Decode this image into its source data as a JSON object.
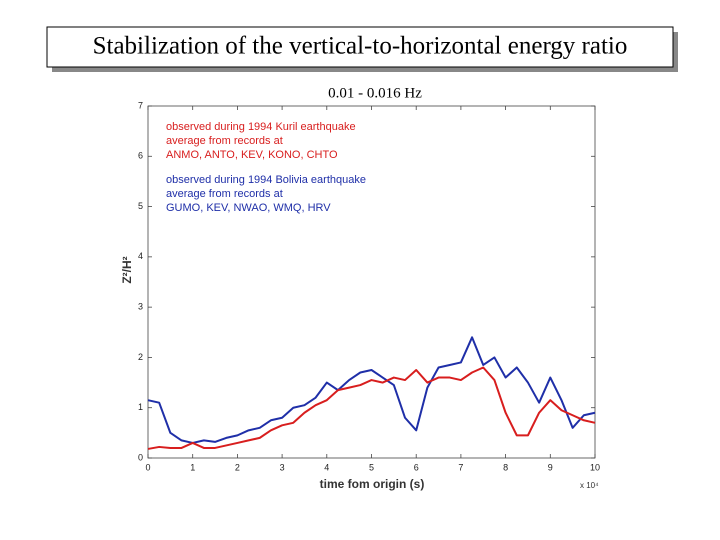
{
  "chart_data": {
    "type": "line",
    "title": "Stabilization of the vertical-to-horizontal energy ratio",
    "subtitle": "0.01 - 0.016 Hz",
    "x_label": "time fom origin (s)",
    "y_label": "Z²/H²",
    "x_multiplier": "x 10⁴",
    "x": [
      0,
      0.25,
      0.5,
      0.75,
      1,
      1.25,
      1.5,
      1.75,
      2,
      2.25,
      2.5,
      2.75,
      3,
      3.25,
      3.5,
      3.75,
      4,
      4.25,
      4.5,
      4.75,
      5,
      5.25,
      5.5,
      5.75,
      6,
      6.25,
      6.5,
      6.75,
      7,
      7.25,
      7.5,
      7.75,
      8,
      8.25,
      8.5,
      8.75,
      9,
      9.25,
      9.5,
      9.75,
      10
    ],
    "series": [
      {
        "color": "#1f2fa8",
        "values": [
          1.15,
          1.1,
          0.5,
          0.35,
          0.3,
          0.35,
          0.32,
          0.4,
          0.45,
          0.55,
          0.6,
          0.75,
          0.8,
          1.0,
          1.05,
          1.2,
          1.5,
          1.35,
          1.55,
          1.7,
          1.75,
          1.6,
          1.45,
          0.8,
          0.55,
          1.4,
          1.8,
          1.85,
          1.9,
          2.4,
          1.85,
          2.0,
          1.6,
          1.8,
          1.5,
          1.1,
          1.6,
          1.15,
          0.6,
          0.85,
          0.9
        ]
      },
      {
        "color": "#d81e1e",
        "values": [
          0.18,
          0.22,
          0.2,
          0.2,
          0.3,
          0.2,
          0.2,
          0.25,
          0.3,
          0.35,
          0.4,
          0.55,
          0.65,
          0.7,
          0.9,
          1.05,
          1.15,
          1.35,
          1.4,
          1.45,
          1.55,
          1.5,
          1.6,
          1.55,
          1.75,
          1.5,
          1.6,
          1.6,
          1.55,
          1.7,
          1.8,
          1.55,
          0.9,
          0.45,
          0.45,
          0.9,
          1.15,
          0.95,
          0.85,
          0.75,
          0.7
        ]
      }
    ],
    "annotations": [
      {
        "color": "#d81e1e",
        "lines": [
          "observed during 1994 Kuril earthquake",
          "average from records at",
          "ANMO, ANTO, KEV, KONO, CHTO"
        ]
      },
      {
        "color": "#1f2fa8",
        "lines": [
          "observed during 1994 Bolivia earthquake",
          "average from records at",
          "GUMO, KEV, NWAO, WMQ, HRV"
        ]
      }
    ],
    "xlim": [
      0,
      10
    ],
    "ylim": [
      0,
      7
    ],
    "xticks": [
      0,
      1,
      2,
      3,
      4,
      5,
      6,
      7,
      8,
      9,
      10
    ],
    "yticks": [
      0,
      1,
      2,
      3,
      4,
      5,
      6,
      7
    ]
  }
}
